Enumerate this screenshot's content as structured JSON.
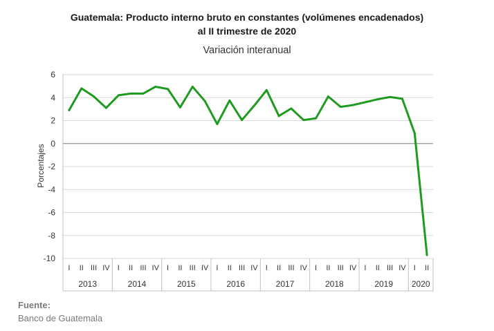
{
  "chart_data": {
    "type": "line",
    "title_line1": "Guatemala: Producto interno bruto en constantes (volúmenes encadenados)",
    "title_line2": "al II trimestre de 2020",
    "subtitle": "Variación interanual",
    "ylabel": "Porcentajes",
    "ylim": [
      -10,
      6
    ],
    "yticks": [
      6,
      4,
      2,
      0,
      -2,
      -4,
      -6,
      -8,
      -10
    ],
    "grid": true,
    "line_color": "#1e9a1e",
    "years": [
      {
        "label": "2013",
        "quarters": [
          "I",
          "II",
          "III",
          "IV"
        ]
      },
      {
        "label": "2014",
        "quarters": [
          "I",
          "II",
          "III",
          "IV"
        ]
      },
      {
        "label": "2015",
        "quarters": [
          "I",
          "II",
          "III",
          "IV"
        ]
      },
      {
        "label": "2016",
        "quarters": [
          "I",
          "II",
          "III",
          "IV"
        ]
      },
      {
        "label": "2017",
        "quarters": [
          "I",
          "II",
          "III",
          "IV"
        ]
      },
      {
        "label": "2018",
        "quarters": [
          "I",
          "II",
          "III",
          "IV"
        ]
      },
      {
        "label": "2019",
        "quarters": [
          "I",
          "II",
          "III",
          "IV"
        ]
      },
      {
        "label": "2020",
        "quarters": [
          "I",
          "II"
        ]
      }
    ],
    "values": [
      2.9,
      4.8,
      4.1,
      3.1,
      4.2,
      4.35,
      4.35,
      4.95,
      4.75,
      3.15,
      4.95,
      3.7,
      1.7,
      3.75,
      2.05,
      3.3,
      4.65,
      2.4,
      3.05,
      2.05,
      2.2,
      4.1,
      3.2,
      3.35,
      3.6,
      3.85,
      4.05,
      3.9,
      0.9,
      -9.7
    ]
  },
  "source": {
    "label": "Fuente:",
    "value": "Banco de Guatemala"
  }
}
